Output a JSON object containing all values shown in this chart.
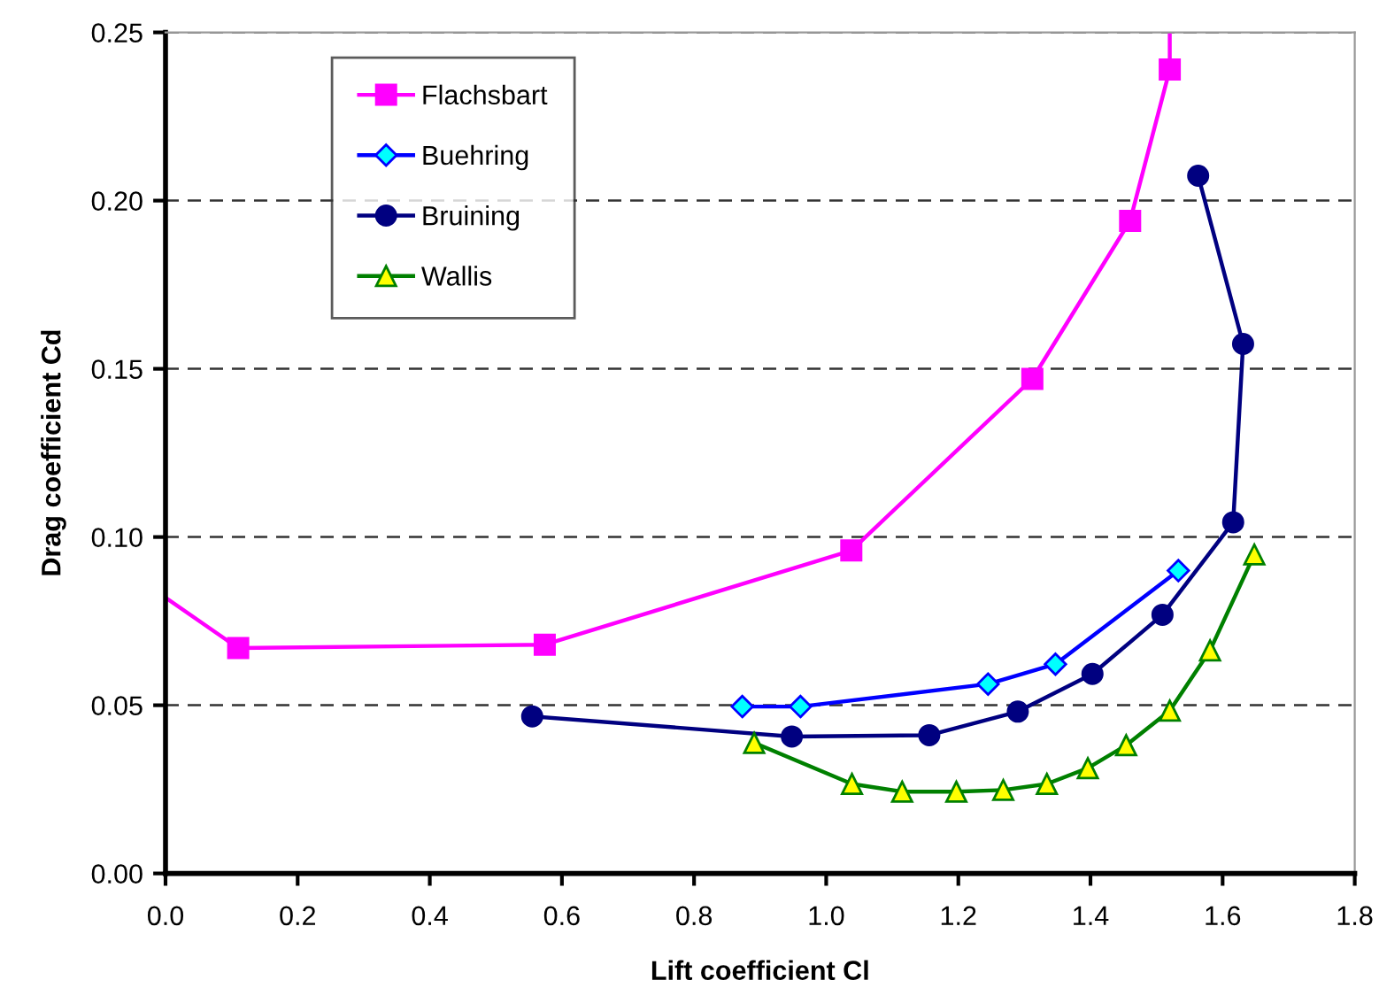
{
  "chart_data": {
    "type": "line",
    "xlabel": "Lift coefficient Cl",
    "ylabel": "Drag coefficient Cd",
    "xlim": [
      0,
      1.8
    ],
    "xticks": [
      {
        "value": 0,
        "label": "0.0"
      },
      0.2,
      0.4,
      0.6,
      0.8,
      {
        "value": 1,
        "label": "1.0"
      },
      1.2,
      1.4,
      1.6,
      1.8
    ],
    "ylim": [
      0,
      0.25
    ],
    "yticks": [
      {
        "value": 0,
        "label": "0.00"
      },
      0.05,
      {
        "value": 0.1,
        "label": "0.10"
      },
      0.15,
      {
        "value": 0.2,
        "label": "0.20"
      },
      0.25
    ],
    "grid": "y",
    "legend": "top left",
    "series": [
      {
        "name": "Flachsbart",
        "type": "line",
        "color": "#ff00ff",
        "colors": [
          null,
          "#ff00ff",
          "#ff00ff",
          "#ff00ff",
          "#ff00ff",
          "#ff00ff",
          "#ff00ff",
          null
        ],
        "marker": "square",
        "x": [
          0,
          0.11,
          0.574,
          1.038,
          1.312,
          1.46,
          1.52,
          1.52
        ],
        "values": [
          0.082,
          0.067,
          0.068,
          0.096,
          0.147,
          0.194,
          0.239,
          0.25
        ]
      },
      {
        "name": "Buehring",
        "color": "#0000ff",
        "colors": [
          "#00ffff",
          "#00ffff",
          "#00ffff",
          "#00ffff",
          "#00ffff"
        ],
        "marker": "diamond",
        "x": [
          0.873,
          0.961,
          1.245,
          1.347,
          1.533
        ],
        "values": [
          0.0496,
          0.0496,
          0.0563,
          0.0622,
          0.09
        ]
      },
      {
        "name": "Bruining",
        "color": "#000080",
        "marker": "circle",
        "x": [
          0.555,
          0.948,
          1.156,
          1.29,
          1.403,
          1.509,
          1.616,
          1.631,
          1.563
        ],
        "values": [
          0.0467,
          0.0407,
          0.0411,
          0.0481,
          0.0593,
          0.0769,
          0.1044,
          0.1574,
          0.2074
        ]
      },
      {
        "name": "Wallis",
        "color": "#008000",
        "colors": [
          "#ffff00",
          "#ffff00",
          "#ffff00",
          "#ffff00",
          "#ffff00",
          "#ffff00",
          "#ffff00",
          "#ffff00",
          "#ffff00",
          "#ffff00",
          "#ffff00"
        ],
        "marker": "triangle",
        "x": [
          0.891,
          1.039,
          1.115,
          1.197,
          1.268,
          1.334,
          1.396,
          1.454,
          1.52,
          1.581,
          1.648
        ],
        "values": [
          0.0388,
          0.0266,
          0.0243,
          0.0243,
          0.0248,
          0.0266,
          0.0313,
          0.0381,
          0.0484,
          0.0663,
          0.0948
        ]
      }
    ]
  }
}
